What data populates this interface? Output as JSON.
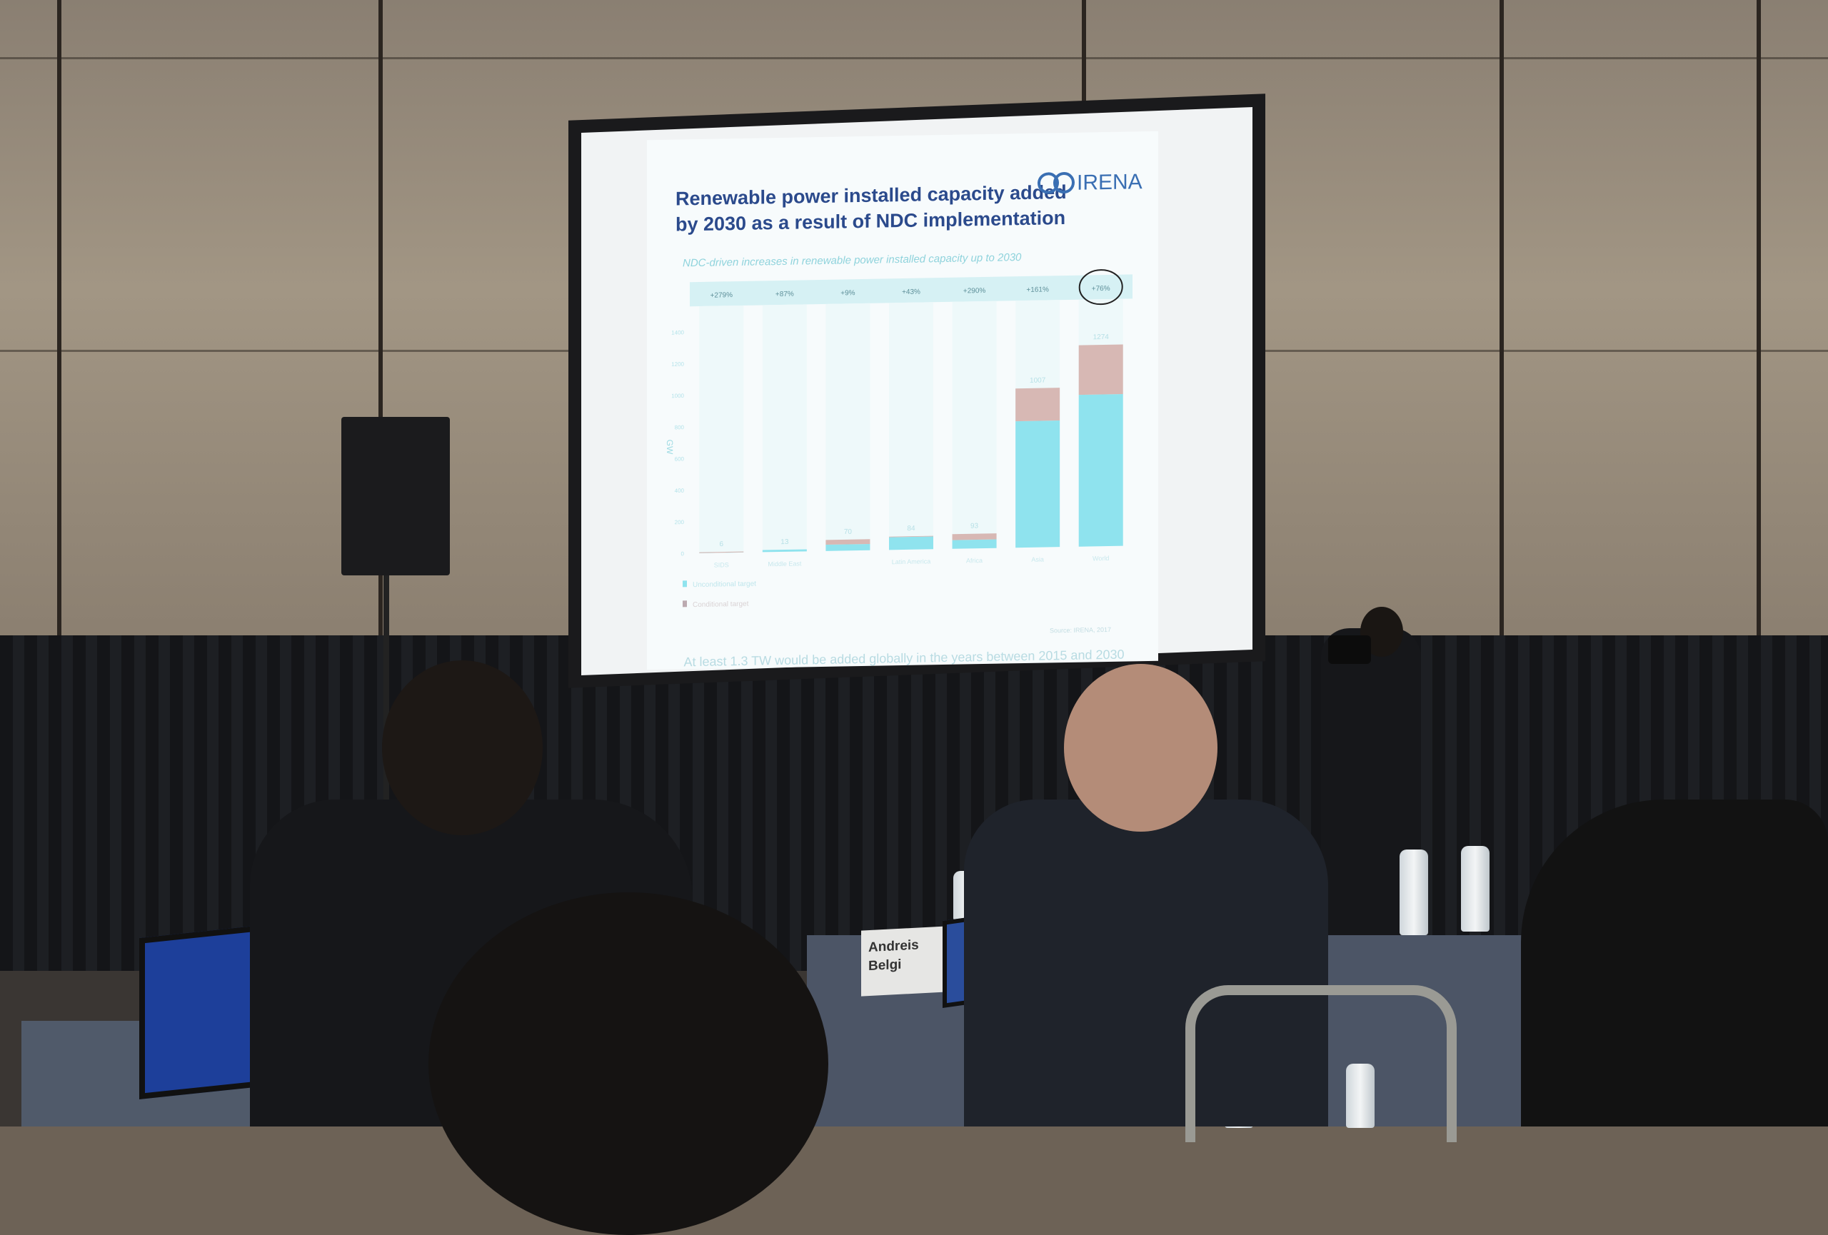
{
  "slide": {
    "title_line1": "Renewable power installed capacity added",
    "title_line2": "by 2030 as a result of NDC implementation",
    "logo_text": "IRENA",
    "subtitle": "NDC-driven increases in renewable power installed capacity up to 2030",
    "source": "Source: IRENA, 2017",
    "footer": "At least 1.3 TW would be added globally in the years between 2015 and 2030"
  },
  "placard": {
    "line1": "Andreis",
    "line2": "Belgi"
  },
  "colors": {
    "unconditional": "#8fe3ee",
    "conditional": "#d7b8b4",
    "title": "#2b4a8c",
    "percent_band": "#d6f1f4"
  },
  "chart_data": {
    "type": "bar",
    "stacked": true,
    "ylabel": "GW",
    "ylim": [
      0,
      1400
    ],
    "yticks": [
      0,
      200,
      400,
      600,
      800,
      1000,
      1200,
      1400
    ],
    "categories": [
      "SIDS",
      "Middle East",
      "",
      "Latin America",
      "Africa",
      "Asia",
      "World"
    ],
    "totals": [
      6,
      13,
      70,
      84,
      93,
      1007,
      1274
    ],
    "percent_increase": [
      "+279%",
      "+87%",
      "+9%",
      "+43%",
      "+290%",
      "+161%",
      "+76%"
    ],
    "highlighted": "+76%",
    "series": [
      {
        "name": "Unconditional target",
        "values": [
          1,
          13,
          40,
          80,
          55,
          800,
          960
        ]
      },
      {
        "name": "Conditional target",
        "values": [
          5,
          0,
          30,
          4,
          38,
          207,
          314
        ]
      }
    ],
    "grid": false,
    "legend": "bottom-left"
  }
}
